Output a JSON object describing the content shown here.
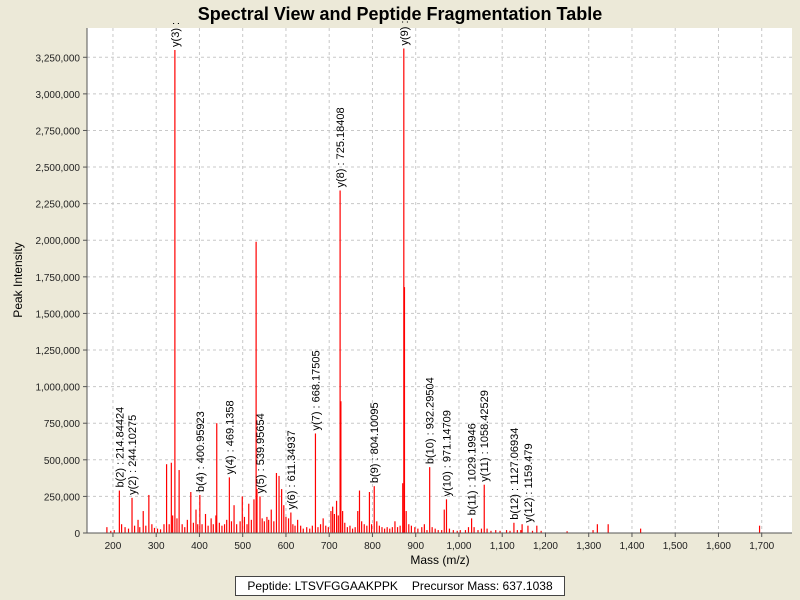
{
  "chart_data": {
    "type": "bar",
    "title": "Spectral View and Peptide Fragmentation Table",
    "xlabel": "Mass (m/z)",
    "ylabel": "Peak Intensity",
    "xlim": [
      140,
      1770
    ],
    "ylim": [
      0,
      3450000
    ],
    "xticks": [
      200,
      300,
      400,
      500,
      600,
      700,
      800,
      900,
      1000,
      1100,
      1200,
      1300,
      1400,
      1500,
      1600,
      1700
    ],
    "xtick_labels": [
      "200",
      "300",
      "400",
      "500",
      "600",
      "700",
      "800",
      "900",
      "1,000",
      "1,100",
      "1,200",
      "1,300",
      "1,400",
      "1,500",
      "1,600",
      "1,700"
    ],
    "yticks": [
      0,
      250000,
      500000,
      750000,
      1000000,
      1250000,
      1500000,
      1750000,
      2000000,
      2250000,
      2500000,
      2750000,
      3000000,
      3250000
    ],
    "ytick_labels": [
      "0",
      "250,000",
      "500,000",
      "750,000",
      "1,000,000",
      "1,250,000",
      "1,500,000",
      "1,750,000",
      "2,000,000",
      "2,250,000",
      "2,500,000",
      "2,750,000",
      "3,000,000",
      "3,250,000"
    ],
    "grid": true,
    "series": [
      {
        "name": "peaks",
        "color": "#FF0000",
        "points": [
          [
            186,
            40000
          ],
          [
            195,
            15000
          ],
          [
            203,
            20000
          ],
          [
            214.84,
            290000
          ],
          [
            220,
            60000
          ],
          [
            228,
            40000
          ],
          [
            236,
            30000
          ],
          [
            244.1,
            240000
          ],
          [
            250,
            50000
          ],
          [
            258,
            90000
          ],
          [
            262,
            40000
          ],
          [
            270,
            150000
          ],
          [
            276,
            50000
          ],
          [
            283,
            260000
          ],
          [
            290,
            60000
          ],
          [
            296,
            35000
          ],
          [
            303,
            30000
          ],
          [
            310,
            25000
          ],
          [
            318,
            60000
          ],
          [
            324,
            470000
          ],
          [
            330,
            60000
          ],
          [
            335,
            480000
          ],
          [
            338,
            120000
          ],
          [
            343.2,
            3300000
          ],
          [
            348,
            100000
          ],
          [
            353,
            430000
          ],
          [
            360,
            60000
          ],
          [
            366,
            40000
          ],
          [
            372,
            90000
          ],
          [
            380,
            280000
          ],
          [
            386,
            70000
          ],
          [
            392,
            160000
          ],
          [
            396,
            60000
          ],
          [
            400.95,
            260000
          ],
          [
            406,
            60000
          ],
          [
            414,
            130000
          ],
          [
            420,
            50000
          ],
          [
            427,
            100000
          ],
          [
            432,
            60000
          ],
          [
            438,
            120000
          ],
          [
            440,
            750000
          ],
          [
            446,
            70000
          ],
          [
            452,
            50000
          ],
          [
            458,
            60000
          ],
          [
            463,
            90000
          ],
          [
            469.14,
            380000
          ],
          [
            474,
            80000
          ],
          [
            480,
            190000
          ],
          [
            486,
            60000
          ],
          [
            494,
            80000
          ],
          [
            499,
            250000
          ],
          [
            504,
            110000
          ],
          [
            510,
            60000
          ],
          [
            514,
            200000
          ],
          [
            520,
            90000
          ],
          [
            526,
            230000
          ],
          [
            531,
            1990000
          ],
          [
            533,
            300000
          ],
          [
            539.96,
            250000
          ],
          [
            545,
            100000
          ],
          [
            550,
            80000
          ],
          [
            556,
            110000
          ],
          [
            560,
            90000
          ],
          [
            566,
            160000
          ],
          [
            572,
            80000
          ],
          [
            578,
            410000
          ],
          [
            584,
            390000
          ],
          [
            590,
            300000
          ],
          [
            595,
            190000
          ],
          [
            600,
            110000
          ],
          [
            606,
            100000
          ],
          [
            611.35,
            140000
          ],
          [
            616,
            60000
          ],
          [
            621,
            50000
          ],
          [
            627,
            90000
          ],
          [
            634,
            50000
          ],
          [
            640,
            30000
          ],
          [
            648,
            40000
          ],
          [
            655,
            30000
          ],
          [
            661,
            50000
          ],
          [
            668.18,
            680000
          ],
          [
            674,
            40000
          ],
          [
            680,
            60000
          ],
          [
            686,
            100000
          ],
          [
            692,
            50000
          ],
          [
            698,
            40000
          ],
          [
            704,
            150000
          ],
          [
            708,
            180000
          ],
          [
            712,
            130000
          ],
          [
            717,
            220000
          ],
          [
            721,
            120000
          ],
          [
            725.18,
            2340000
          ],
          [
            727,
            900000
          ],
          [
            731,
            150000
          ],
          [
            736,
            70000
          ],
          [
            742,
            40000
          ],
          [
            748,
            50000
          ],
          [
            754,
            30000
          ],
          [
            760,
            40000
          ],
          [
            766,
            150000
          ],
          [
            770,
            290000
          ],
          [
            775,
            80000
          ],
          [
            781,
            60000
          ],
          [
            787,
            50000
          ],
          [
            793,
            280000
          ],
          [
            798,
            60000
          ],
          [
            804.1,
            320000
          ],
          [
            810,
            80000
          ],
          [
            816,
            50000
          ],
          [
            822,
            40000
          ],
          [
            828,
            30000
          ],
          [
            834,
            40000
          ],
          [
            840,
            30000
          ],
          [
            846,
            40000
          ],
          [
            852,
            80000
          ],
          [
            858,
            40000
          ],
          [
            864,
            50000
          ],
          [
            870,
            340000
          ],
          [
            872.5,
            3310000
          ],
          [
            874,
            1680000
          ],
          [
            878,
            150000
          ],
          [
            884,
            60000
          ],
          [
            890,
            50000
          ],
          [
            898,
            40000
          ],
          [
            905,
            30000
          ],
          [
            914,
            40000
          ],
          [
            920,
            60000
          ],
          [
            926,
            20000
          ],
          [
            932.3,
            450000
          ],
          [
            938,
            40000
          ],
          [
            945,
            30000
          ],
          [
            952,
            20000
          ],
          [
            960,
            20000
          ],
          [
            966,
            160000
          ],
          [
            971.15,
            230000
          ],
          [
            978,
            30000
          ],
          [
            987,
            20000
          ],
          [
            996,
            15000
          ],
          [
            1003,
            20000
          ],
          [
            1015,
            20000
          ],
          [
            1022,
            40000
          ],
          [
            1029.2,
            100000
          ],
          [
            1035,
            40000
          ],
          [
            1044,
            20000
          ],
          [
            1052,
            30000
          ],
          [
            1058.43,
            330000
          ],
          [
            1065,
            30000
          ],
          [
            1074,
            15000
          ],
          [
            1085,
            20000
          ],
          [
            1095,
            15000
          ],
          [
            1110,
            20000
          ],
          [
            1118,
            15000
          ],
          [
            1127.07,
            70000
          ],
          [
            1135,
            20000
          ],
          [
            1143,
            20000
          ],
          [
            1146,
            60000
          ],
          [
            1159.48,
            50000
          ],
          [
            1170,
            15000
          ],
          [
            1180,
            50000
          ],
          [
            1190,
            15000
          ],
          [
            1250,
            12000
          ],
          [
            1310,
            20000
          ],
          [
            1320,
            60000
          ],
          [
            1345,
            60000
          ],
          [
            1420,
            30000
          ],
          [
            1695,
            50000
          ]
        ]
      }
    ],
    "annotations": [
      {
        "x": 214.84,
        "y": 290000,
        "text": "b(2) : 214.84424"
      },
      {
        "x": 244.1,
        "y": 240000,
        "text": "y(2) : 244.10275"
      },
      {
        "x": 343.2,
        "y": 3300000,
        "text": "y(3) :"
      },
      {
        "x": 400.95,
        "y": 260000,
        "text": "b(4) : 400.95923"
      },
      {
        "x": 469.14,
        "y": 380000,
        "text": "y(4) : 469.1358"
      },
      {
        "x": 539.96,
        "y": 250000,
        "text": "y(5) : 539.95654"
      },
      {
        "x": 611.35,
        "y": 140000,
        "text": "y(6) : 611.34937"
      },
      {
        "x": 668.18,
        "y": 680000,
        "text": "y(7) : 668.17505"
      },
      {
        "x": 725.18,
        "y": 2340000,
        "text": "y(8) : 725.18408"
      },
      {
        "x": 804.1,
        "y": 320000,
        "text": "b(9) : 804.10095"
      },
      {
        "x": 872.5,
        "y": 3310000,
        "text": "y(9) :"
      },
      {
        "x": 932.3,
        "y": 450000,
        "text": "b(10) : 932.29504"
      },
      {
        "x": 971.15,
        "y": 230000,
        "text": "y(10) : 971.14709"
      },
      {
        "x": 1029.2,
        "y": 100000,
        "text": "b(11) : 1029.19946"
      },
      {
        "x": 1058.43,
        "y": 330000,
        "text": "y(11) : 1058.42529"
      },
      {
        "x": 1127.07,
        "y": 70000,
        "text": "b(12) : 1127.06934"
      },
      {
        "x": 1159.48,
        "y": 50000,
        "text": "y(12) : 1159.479"
      }
    ]
  },
  "footer": {
    "peptide": "Peptide: LTSVFGGAAKPPK",
    "precursor": "Precursor Mass: 637.1038"
  }
}
